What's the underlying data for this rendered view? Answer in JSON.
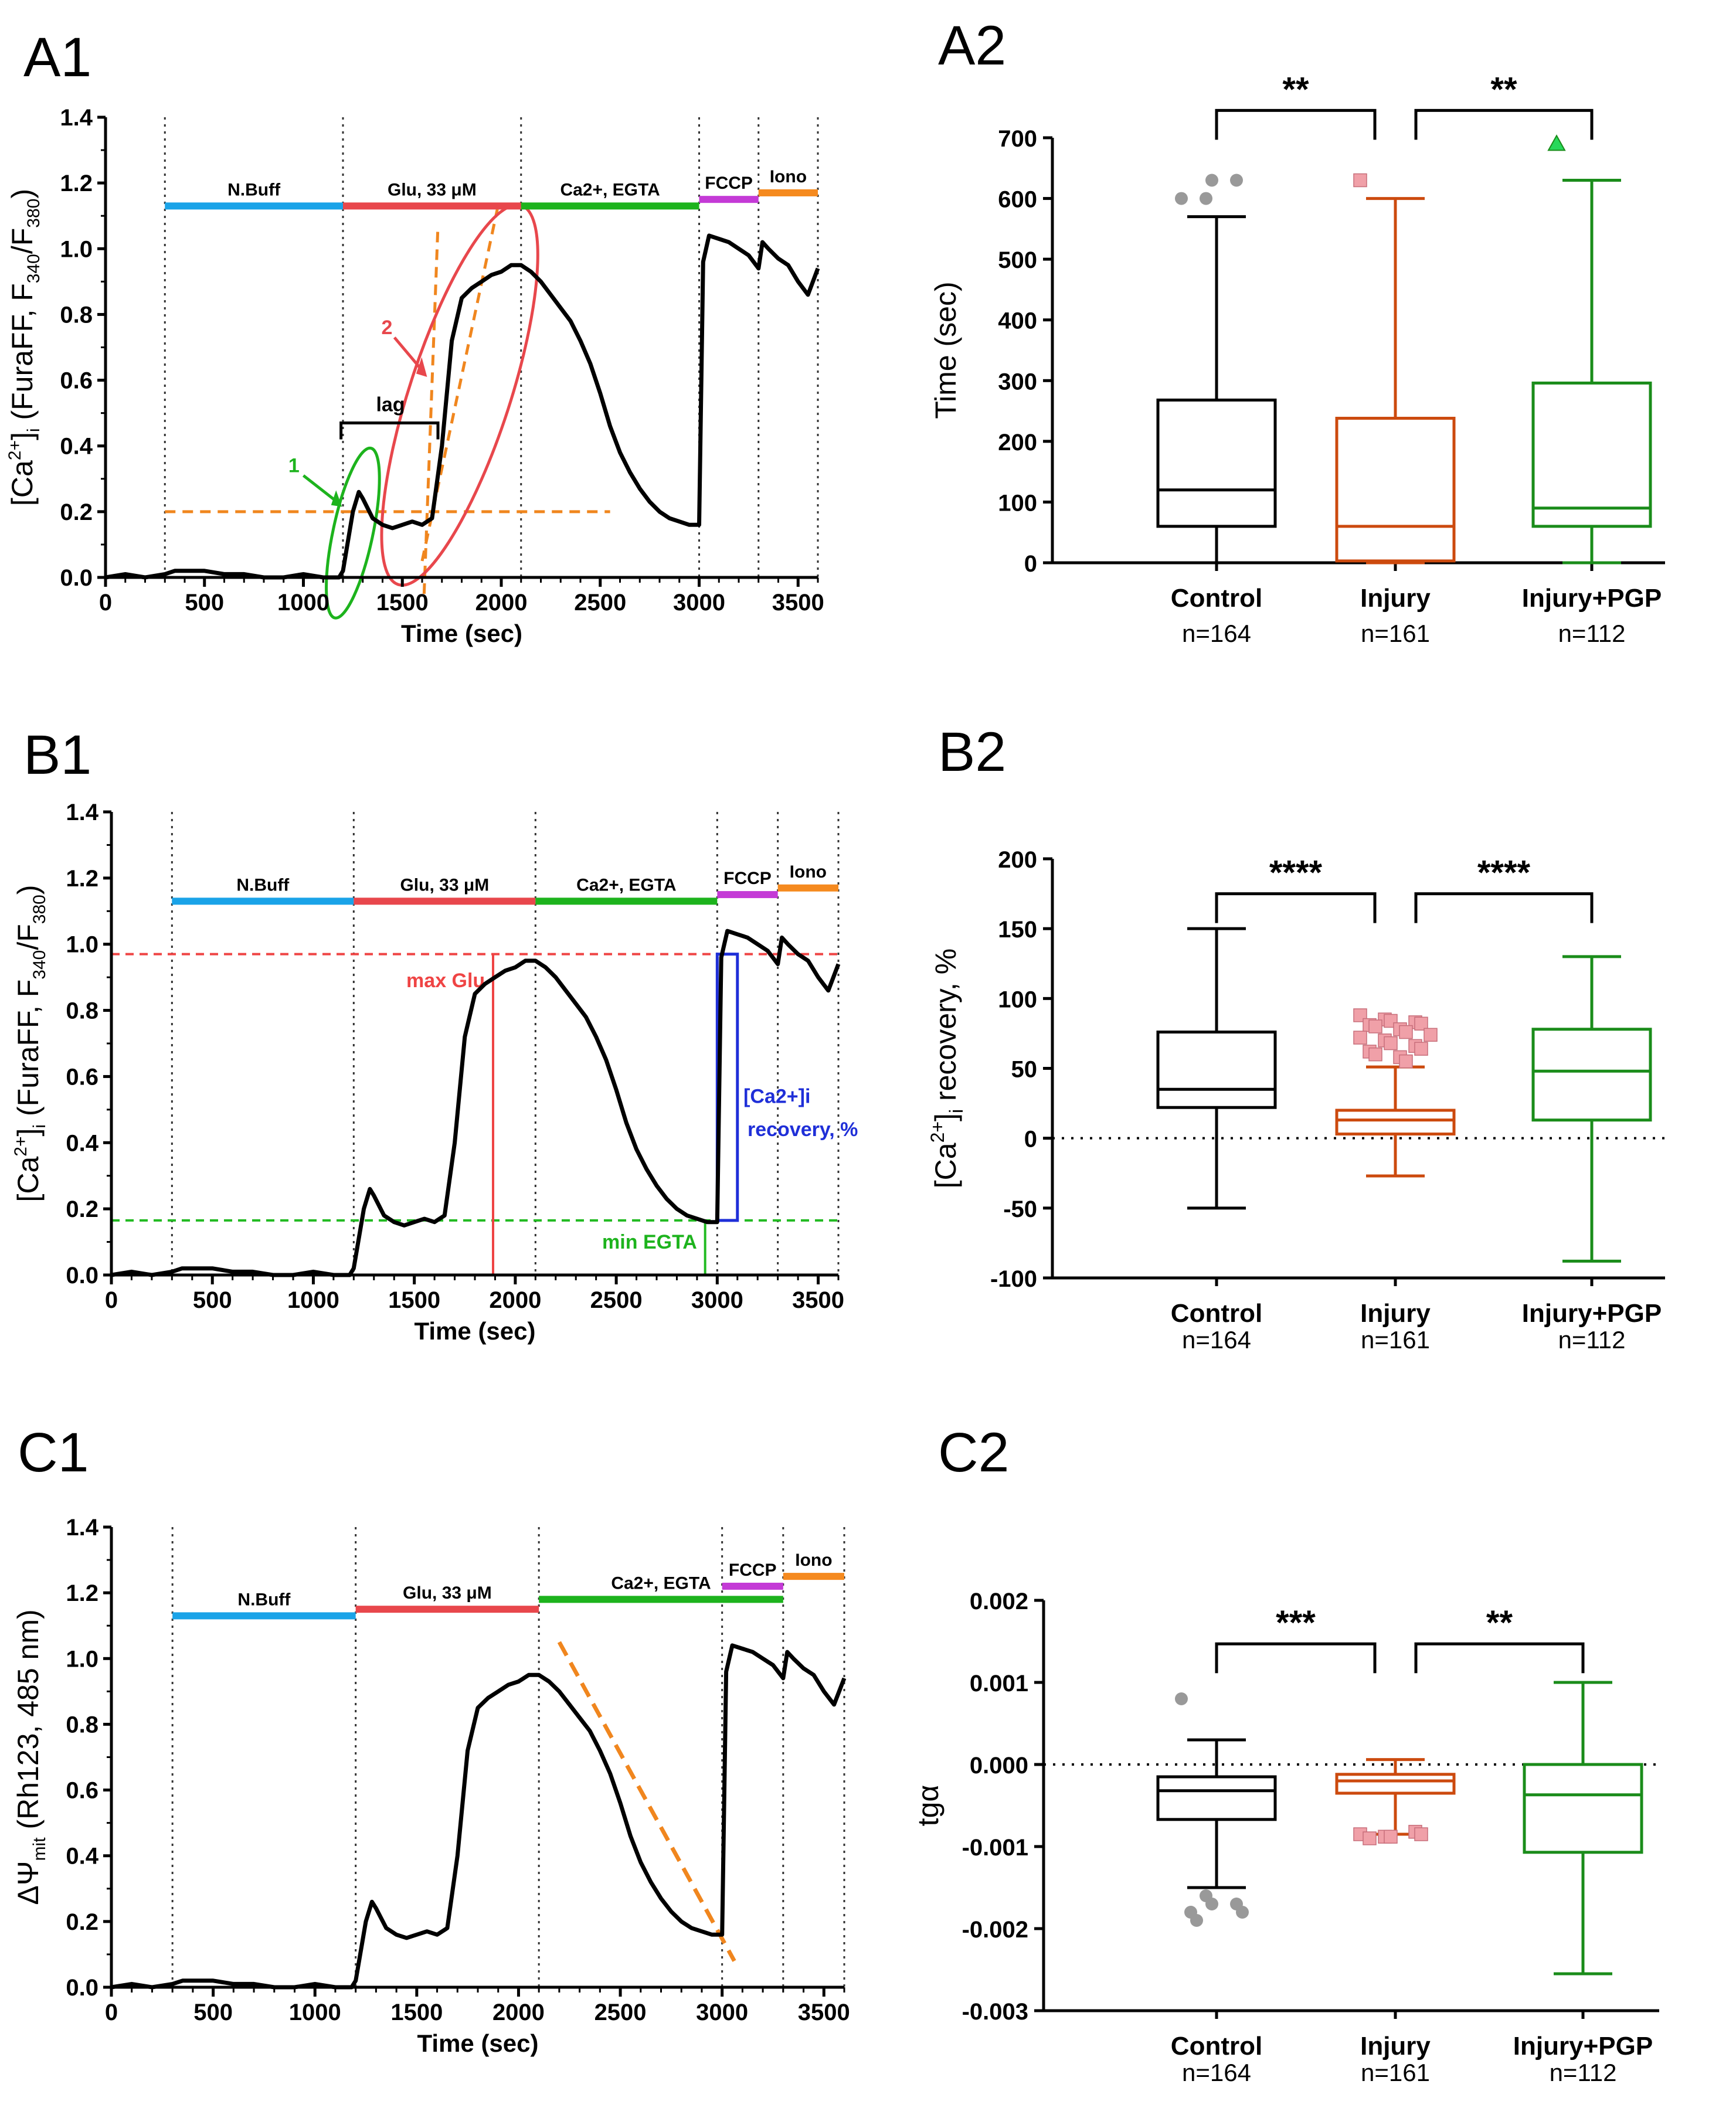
{
  "panels": {
    "A1": "A1",
    "A2": "A2",
    "B1": "B1",
    "B2": "B2",
    "C1": "C1",
    "C2": "C2"
  },
  "colors": {
    "nbuff": "#1aa3e8",
    "glu": "#e8474c",
    "egta": "#1db31d",
    "fccp": "#c43ad6",
    "iono": "#f58a1f",
    "control": "#000000",
    "injury": "#cc4a0e",
    "pgp": "#1a8c1a",
    "injury_outlier": "#f0a0a8",
    "control_outlier": "#999999",
    "orange_dash": "#f0861e",
    "red_dash": "#ef4444",
    "green_dash": "#22bb22",
    "blue_box": "#1f2fd8"
  },
  "chart_data": [
    {
      "id": "A1",
      "type": "line",
      "xlabel": "Time (sec)",
      "ylabel": "[Ca2+]i (FuraFF, F340/F380)",
      "xlim": [
        0,
        3600
      ],
      "ylim": [
        0,
        1.4
      ],
      "xticks": [
        "0",
        "500",
        "1000",
        "1500",
        "2000",
        "2500",
        "3000",
        "3500"
      ],
      "yticks": [
        "0.0",
        "0.2",
        "0.4",
        "0.6",
        "0.8",
        "1.0",
        "1.2",
        "1.4"
      ],
      "bars": [
        {
          "label": "N.Buff",
          "x0": 300,
          "x1": 1200,
          "y": 1.13,
          "color": "nbuff"
        },
        {
          "label": "Glu, 33 μM",
          "x0": 1200,
          "x1": 2100,
          "y": 1.13,
          "color": "glu"
        },
        {
          "label": "Ca2+, EGTA",
          "x0": 2100,
          "x1": 3000,
          "y": 1.13,
          "color": "egta"
        },
        {
          "label": "FCCP",
          "x0": 3000,
          "x1": 3300,
          "y": 1.15,
          "color": "fccp"
        },
        {
          "label": "Iono",
          "x0": 3300,
          "x1": 3600,
          "y": 1.17,
          "color": "iono"
        }
      ],
      "annotations": {
        "lag": "lag",
        "marker1": "1",
        "marker2": "2"
      },
      "trace_x": [
        0,
        100,
        200,
        300,
        350,
        400,
        500,
        600,
        700,
        800,
        900,
        1000,
        1100,
        1180,
        1200,
        1250,
        1280,
        1300,
        1350,
        1400,
        1450,
        1500,
        1550,
        1600,
        1650,
        1700,
        1750,
        1800,
        1850,
        1900,
        1950,
        2000,
        2050,
        2100,
        2150,
        2200,
        2250,
        2300,
        2350,
        2400,
        2450,
        2500,
        2550,
        2600,
        2650,
        2700,
        2750,
        2800,
        2850,
        2900,
        2950,
        3000,
        3020,
        3050,
        3100,
        3150,
        3200,
        3250,
        3300,
        3320,
        3350,
        3400,
        3450,
        3500,
        3550,
        3600
      ],
      "trace_y": [
        0.0,
        0.01,
        0.0,
        0.01,
        0.02,
        0.02,
        0.02,
        0.01,
        0.01,
        0.0,
        0.0,
        0.01,
        0.0,
        0.0,
        0.02,
        0.2,
        0.26,
        0.24,
        0.18,
        0.16,
        0.15,
        0.16,
        0.17,
        0.16,
        0.18,
        0.4,
        0.72,
        0.85,
        0.88,
        0.9,
        0.92,
        0.93,
        0.95,
        0.95,
        0.93,
        0.9,
        0.86,
        0.82,
        0.78,
        0.72,
        0.65,
        0.56,
        0.46,
        0.38,
        0.32,
        0.27,
        0.23,
        0.2,
        0.18,
        0.17,
        0.16,
        0.16,
        0.96,
        1.04,
        1.03,
        1.02,
        1.0,
        0.98,
        0.94,
        1.02,
        1.0,
        0.97,
        0.95,
        0.9,
        0.86,
        0.94
      ]
    },
    {
      "id": "A2",
      "type": "box",
      "ylabel": "Time (sec)",
      "ylim": [
        0,
        700
      ],
      "yticks": [
        "0",
        "100",
        "200",
        "300",
        "400",
        "500",
        "600",
        "700"
      ],
      "categories": [
        "Control",
        "Injury",
        "Injury+PGP"
      ],
      "n_labels": [
        "n=164",
        "n=161",
        "n=112"
      ],
      "boxes": [
        {
          "min": 0,
          "q1": 60,
          "median": 120,
          "q3": 268,
          "max": 570,
          "outliers": [
            600,
            600,
            630,
            630
          ],
          "color": "control"
        },
        {
          "min": 0,
          "q1": 3,
          "median": 60,
          "q3": 238,
          "max": 600,
          "outliers": [
            630
          ],
          "color": "injury"
        },
        {
          "min": 0,
          "q1": 60,
          "median": 90,
          "q3": 296,
          "max": 630,
          "outliers": [
            690
          ],
          "color": "pgp"
        }
      ],
      "significance": [
        {
          "from": 0,
          "to": 1,
          "label": "**",
          "y": 745
        },
        {
          "from": 1,
          "to": 2,
          "label": "**",
          "y": 745
        }
      ]
    },
    {
      "id": "B1",
      "type": "line",
      "xlabel": "Time (sec)",
      "ylabel": "[Ca2+]i (FuraFF, F340/F380)",
      "xlim": [
        0,
        3600
      ],
      "ylim": [
        0,
        1.4
      ],
      "xticks": [
        "0",
        "500",
        "1000",
        "1500",
        "2000",
        "2500",
        "3000",
        "3500"
      ],
      "yticks": [
        "0.0",
        "0.2",
        "0.4",
        "0.6",
        "0.8",
        "1.0",
        "1.2",
        "1.4"
      ],
      "bars": [
        {
          "label": "N.Buff",
          "x0": 300,
          "x1": 1200,
          "y": 1.13,
          "color": "nbuff"
        },
        {
          "label": "Glu, 33 μM",
          "x0": 1200,
          "x1": 2100,
          "y": 1.13,
          "color": "glu"
        },
        {
          "label": "Ca2+, EGTA",
          "x0": 2100,
          "x1": 3000,
          "y": 1.13,
          "color": "egta"
        },
        {
          "label": "FCCP",
          "x0": 3000,
          "x1": 3300,
          "y": 1.15,
          "color": "fccp"
        },
        {
          "label": "Iono",
          "x0": 3300,
          "x1": 3600,
          "y": 1.17,
          "color": "iono"
        }
      ],
      "annotations": {
        "max_glu": "max Glu",
        "min_egta": "min EGTA",
        "recovery_line1": "[Ca2+]i",
        "recovery_line2": "recovery, %"
      },
      "levels": {
        "max": 0.97,
        "min": 0.165
      }
    },
    {
      "id": "B2",
      "type": "box",
      "ylabel": "[Ca2+]i recovery, %",
      "ylim": [
        -100,
        200
      ],
      "yticks": [
        "-100",
        "-50",
        "0",
        "50",
        "100",
        "150",
        "200"
      ],
      "categories": [
        "Control",
        "Injury",
        "Injury+PGP"
      ],
      "n_labels": [
        "n=164",
        "n=161",
        "n=112"
      ],
      "boxes": [
        {
          "min": -50,
          "q1": 22,
          "median": 35,
          "q3": 76,
          "max": 150,
          "outliers": [],
          "color": "control"
        },
        {
          "min": -27,
          "q1": 3,
          "median": 13,
          "q3": 20,
          "max": 51,
          "outliers": [
            88,
            85,
            84,
            83,
            82,
            81,
            80,
            78,
            76,
            74,
            72,
            70,
            68,
            66,
            64,
            62,
            60,
            58,
            55
          ],
          "color": "injury"
        },
        {
          "min": -88,
          "q1": 13,
          "median": 48,
          "q3": 78,
          "max": 130,
          "outliers": [],
          "color": "pgp"
        }
      ],
      "significance": [
        {
          "from": 0,
          "to": 1,
          "label": "****",
          "y": 175
        },
        {
          "from": 1,
          "to": 2,
          "label": "****",
          "y": 175
        }
      ]
    },
    {
      "id": "C1",
      "type": "line",
      "xlabel": "Time (sec)",
      "ylabel": "ΔΨmit (Rh123, 485 nm)",
      "xlim": [
        0,
        3600
      ],
      "ylim": [
        0,
        1.4
      ],
      "xticks": [
        "0",
        "500",
        "1000",
        "1500",
        "2000",
        "2500",
        "3000",
        "3500"
      ],
      "yticks": [
        "0.0",
        "0.2",
        "0.4",
        "0.6",
        "0.8",
        "1.0",
        "1.2",
        "1.4"
      ],
      "bars": [
        {
          "label": "N.Buff",
          "x0": 300,
          "x1": 1200,
          "y": 1.13,
          "color": "nbuff"
        },
        {
          "label": "Glu, 33 μM",
          "x0": 1200,
          "x1": 2100,
          "y": 1.15,
          "color": "glu"
        },
        {
          "label": "Ca2+, EGTA",
          "x0": 2100,
          "x1": 3300,
          "y": 1.18,
          "color": "egta"
        },
        {
          "label": "FCCP",
          "x0": 3000,
          "x1": 3300,
          "y": 1.22,
          "color": "fccp"
        },
        {
          "label": "Iono",
          "x0": 3300,
          "x1": 3600,
          "y": 1.25,
          "color": "iono"
        }
      ]
    },
    {
      "id": "C2",
      "type": "box",
      "ylabel": "tgα",
      "ylim": [
        -0.003,
        0.002
      ],
      "yticks": [
        "-0.003",
        "-0.002",
        "-0.001",
        "0.000",
        "0.001",
        "0.002"
      ],
      "categories": [
        "Control",
        "Injury",
        "Injury+PGP"
      ],
      "n_labels": [
        "n=164",
        "n=161",
        "n=112"
      ],
      "boxes": [
        {
          "min": -0.0015,
          "q1": -0.00067,
          "median": -0.00032,
          "q3": -0.00015,
          "max": 0.0003,
          "outliers": [
            0.0008,
            -0.0016,
            -0.0017,
            -0.0017,
            -0.0018,
            -0.0018,
            -0.0019
          ],
          "color": "control"
        },
        {
          "min": -0.00085,
          "q1": -0.00035,
          "median": -0.0002,
          "q3": -0.00012,
          "max": 6e-05,
          "outliers": [
            -0.00085,
            -0.00088,
            -0.00088,
            -0.00082,
            -0.00085,
            -0.0009
          ],
          "color": "injury"
        },
        {
          "min": -0.00255,
          "q1": -0.00107,
          "median": -0.00037,
          "q3": 0.0,
          "max": 0.001,
          "outliers": [],
          "color": "pgp"
        }
      ],
      "significance": [
        {
          "from": 0,
          "to": 1,
          "label": "***",
          "y": 0.00147
        },
        {
          "from": 1,
          "to": 2,
          "label": "**",
          "y": 0.00147
        }
      ]
    }
  ]
}
